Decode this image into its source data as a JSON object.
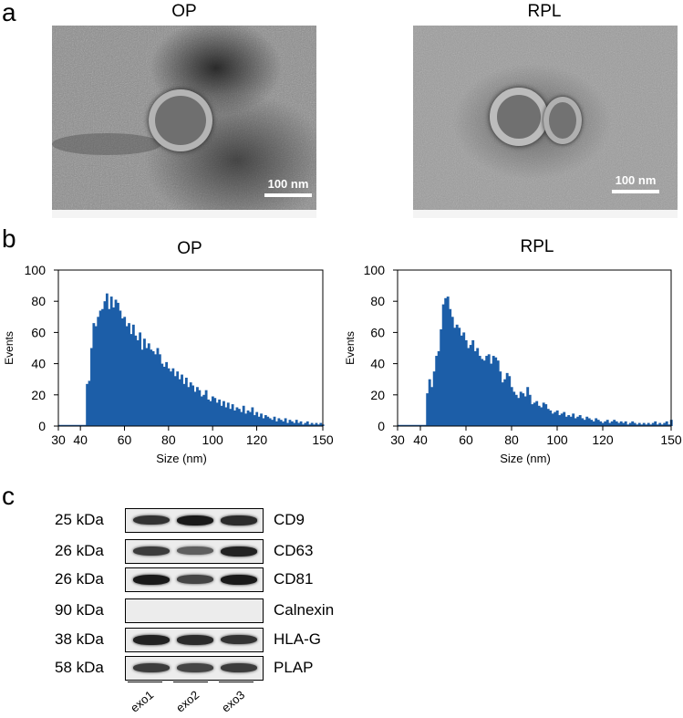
{
  "panels": {
    "a": "a",
    "b": "b",
    "c": "c"
  },
  "tem": [
    {
      "title": "OP",
      "scale_label": "100 nm"
    },
    {
      "title": "RPL",
      "scale_label": "100 nm"
    }
  ],
  "chart_data": [
    {
      "type": "bar",
      "title": "OP",
      "xlabel": "Size (nm)",
      "ylabel": "Events",
      "xlim": [
        30,
        150
      ],
      "ylim": [
        0,
        100
      ],
      "xticks": [
        30,
        40,
        60,
        80,
        100,
        120,
        150
      ],
      "yticks": [
        0,
        20,
        40,
        60,
        80,
        100
      ],
      "x": [
        30,
        31,
        32,
        33,
        34,
        35,
        36,
        37,
        38,
        39,
        40,
        41,
        42,
        43,
        44,
        45,
        46,
        47,
        48,
        49,
        50,
        51,
        52,
        53,
        54,
        55,
        56,
        57,
        58,
        59,
        60,
        61,
        62,
        63,
        64,
        65,
        66,
        67,
        68,
        69,
        70,
        71,
        72,
        73,
        74,
        75,
        76,
        77,
        78,
        79,
        80,
        81,
        82,
        83,
        84,
        85,
        86,
        87,
        88,
        89,
        90,
        91,
        92,
        93,
        94,
        95,
        96,
        97,
        98,
        99,
        100,
        101,
        102,
        103,
        104,
        105,
        106,
        107,
        108,
        109,
        110,
        111,
        112,
        113,
        114,
        115,
        116,
        117,
        118,
        119,
        120,
        121,
        122,
        123,
        124,
        125,
        126,
        127,
        128,
        129,
        130,
        131,
        132,
        133,
        134,
        135,
        136,
        137,
        138,
        139,
        140,
        141,
        142,
        143,
        144,
        145,
        146,
        147,
        148,
        149,
        150
      ],
      "values": [
        0,
        0,
        0,
        0,
        0,
        0,
        0,
        0,
        0,
        0,
        0,
        0,
        0,
        27,
        29,
        50,
        66,
        64,
        70,
        74,
        75,
        80,
        85,
        75,
        83,
        76,
        81,
        79,
        74,
        69,
        70,
        64,
        66,
        59,
        65,
        58,
        55,
        60,
        49,
        56,
        50,
        53,
        49,
        48,
        46,
        50,
        46,
        40,
        38,
        41,
        37,
        35,
        37,
        32,
        35,
        30,
        33,
        27,
        31,
        25,
        28,
        26,
        22,
        25,
        23,
        19,
        20,
        23,
        17,
        16,
        19,
        18,
        15,
        17,
        13,
        16,
        12,
        15,
        11,
        14,
        10,
        12,
        11,
        9,
        13,
        8,
        10,
        9,
        12,
        7,
        9,
        6,
        8,
        5,
        7,
        6,
        5,
        4,
        6,
        3,
        5,
        4,
        3,
        5,
        2,
        4,
        3,
        2,
        4,
        2,
        3,
        1,
        2,
        3,
        1,
        2,
        1,
        2,
        1,
        2,
        1
      ]
    },
    {
      "type": "bar",
      "title": "RPL",
      "xlabel": "Size (nm)",
      "ylabel": "Events",
      "xlim": [
        30,
        150
      ],
      "ylim": [
        0,
        100
      ],
      "xticks": [
        30,
        40,
        60,
        80,
        100,
        120,
        150
      ],
      "yticks": [
        0,
        20,
        40,
        60,
        80,
        100
      ],
      "x": [
        30,
        31,
        32,
        33,
        34,
        35,
        36,
        37,
        38,
        39,
        40,
        41,
        42,
        43,
        44,
        45,
        46,
        47,
        48,
        49,
        50,
        51,
        52,
        53,
        54,
        55,
        56,
        57,
        58,
        59,
        60,
        61,
        62,
        63,
        64,
        65,
        66,
        67,
        68,
        69,
        70,
        71,
        72,
        73,
        74,
        75,
        76,
        77,
        78,
        79,
        80,
        81,
        82,
        83,
        84,
        85,
        86,
        87,
        88,
        89,
        90,
        91,
        92,
        93,
        94,
        95,
        96,
        97,
        98,
        99,
        100,
        101,
        102,
        103,
        104,
        105,
        106,
        107,
        108,
        109,
        110,
        111,
        112,
        113,
        114,
        115,
        116,
        117,
        118,
        119,
        120,
        121,
        122,
        123,
        124,
        125,
        126,
        127,
        128,
        129,
        130,
        131,
        132,
        133,
        134,
        135,
        136,
        137,
        138,
        139,
        140,
        141,
        142,
        143,
        144,
        145,
        146,
        147,
        148,
        149,
        150
      ],
      "values": [
        0,
        0,
        0,
        0,
        0,
        0,
        0,
        0,
        0,
        0,
        0,
        0,
        0,
        21,
        30,
        25,
        35,
        45,
        48,
        62,
        78,
        82,
        83,
        75,
        70,
        63,
        65,
        63,
        58,
        60,
        55,
        50,
        52,
        55,
        48,
        50,
        45,
        43,
        42,
        45,
        46,
        40,
        45,
        44,
        42,
        35,
        28,
        30,
        34,
        32,
        25,
        22,
        20,
        18,
        22,
        21,
        19,
        25,
        20,
        14,
        15,
        16,
        13,
        12,
        15,
        14,
        11,
        10,
        8,
        9,
        10,
        7,
        8,
        9,
        6,
        7,
        6,
        8,
        5,
        6,
        7,
        5,
        4,
        6,
        5,
        4,
        3,
        5,
        4,
        3,
        2,
        3,
        4,
        2,
        3,
        4,
        3,
        2,
        3,
        2,
        3,
        1,
        2,
        3,
        2,
        1,
        2,
        1,
        2,
        1,
        2,
        1,
        2,
        3,
        1,
        2,
        1,
        2,
        3,
        1,
        4
      ]
    }
  ],
  "western_blot": {
    "rows": [
      {
        "kda": "25 kDa",
        "protein": "CD9",
        "bands": [
          0.85,
          1.0,
          0.9
        ]
      },
      {
        "kda": "26 kDa",
        "protein": "CD63",
        "bands": [
          0.8,
          0.6,
          0.95
        ]
      },
      {
        "kda": "26 kDa",
        "protein": "CD81",
        "bands": [
          1.0,
          0.75,
          1.0
        ]
      },
      {
        "kda": "90 kDa",
        "protein": "Calnexin",
        "bands": [
          0.0,
          0.0,
          0.0
        ]
      },
      {
        "kda": "38 kDa",
        "protein": "HLA-G",
        "bands": [
          0.95,
          0.9,
          0.85
        ]
      },
      {
        "kda": "58 kDa",
        "protein": "PLAP",
        "bands": [
          0.8,
          0.75,
          0.8
        ]
      }
    ],
    "lanes": [
      "exo1",
      "exo2",
      "exo3"
    ]
  }
}
